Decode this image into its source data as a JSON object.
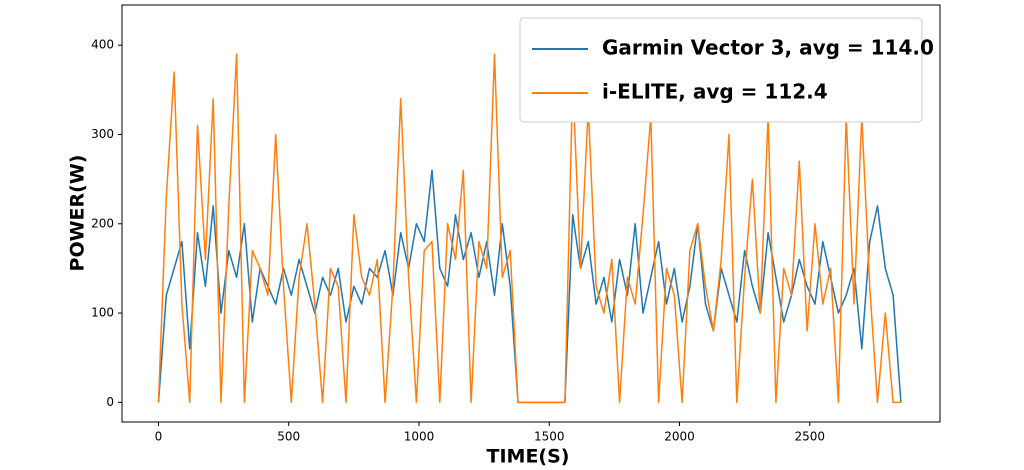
{
  "chart_data": {
    "type": "line",
    "xlabel": "TIME(S)",
    "ylabel": "POWER(W)",
    "x": [
      0,
      30,
      60,
      90,
      120,
      150,
      180,
      210,
      240,
      270,
      300,
      330,
      360,
      390,
      420,
      450,
      480,
      510,
      540,
      570,
      600,
      630,
      660,
      690,
      720,
      750,
      780,
      810,
      840,
      870,
      900,
      930,
      960,
      990,
      1020,
      1050,
      1080,
      1110,
      1140,
      1170,
      1200,
      1230,
      1260,
      1290,
      1320,
      1350,
      1380,
      1410,
      1440,
      1470,
      1500,
      1530,
      1560,
      1590,
      1620,
      1650,
      1680,
      1710,
      1740,
      1770,
      1800,
      1830,
      1860,
      1890,
      1920,
      1950,
      1980,
      2010,
      2040,
      2070,
      2100,
      2130,
      2160,
      2190,
      2220,
      2250,
      2280,
      2310,
      2340,
      2370,
      2400,
      2430,
      2460,
      2490,
      2520,
      2550,
      2580,
      2610,
      2640,
      2670,
      2700,
      2730,
      2760,
      2790,
      2820,
      2850
    ],
    "series": [
      {
        "name": "Garmin Vector 3, avg = 114.0",
        "color": "#1f77b4",
        "values": [
          0,
          120,
          150,
          180,
          60,
          190,
          130,
          220,
          100,
          170,
          140,
          200,
          90,
          150,
          130,
          110,
          150,
          120,
          160,
          130,
          100,
          140,
          120,
          150,
          90,
          130,
          110,
          150,
          140,
          170,
          120,
          190,
          150,
          200,
          180,
          260,
          150,
          130,
          210,
          160,
          190,
          140,
          180,
          120,
          200,
          130,
          0,
          0,
          0,
          0,
          0,
          0,
          0,
          210,
          150,
          180,
          110,
          140,
          90,
          160,
          120,
          200,
          100,
          140,
          180,
          110,
          150,
          90,
          130,
          200,
          110,
          80,
          150,
          120,
          90,
          170,
          130,
          100,
          190,
          140,
          90,
          120,
          160,
          130,
          110,
          180,
          140,
          100,
          120,
          150,
          60,
          180,
          220,
          150,
          120,
          0
        ]
      },
      {
        "name": "i-ELITE, avg = 112.4",
        "color": "#ff7f0e",
        "values": [
          0,
          230,
          370,
          110,
          0,
          310,
          160,
          340,
          0,
          220,
          390,
          0,
          170,
          150,
          120,
          300,
          130,
          0,
          140,
          200,
          110,
          0,
          150,
          130,
          0,
          210,
          140,
          120,
          160,
          0,
          130,
          340,
          140,
          0,
          170,
          180,
          0,
          200,
          160,
          260,
          0,
          180,
          150,
          390,
          140,
          170,
          0,
          0,
          0,
          0,
          0,
          0,
          0,
          360,
          150,
          330,
          130,
          100,
          160,
          0,
          140,
          110,
          210,
          320,
          0,
          150,
          120,
          0,
          170,
          200,
          130,
          80,
          160,
          300,
          0,
          140,
          250,
          100,
          320,
          0,
          150,
          120,
          270,
          80,
          200,
          110,
          150,
          0,
          320,
          110,
          320,
          130,
          0,
          100,
          0,
          0
        ]
      }
    ],
    "xlim": [
      -140,
      3000
    ],
    "xticks": [
      0,
      500,
      1000,
      1500,
      2000,
      2500
    ],
    "ylim": [
      -22,
      445
    ],
    "yticks": [
      0,
      100,
      200,
      300,
      400
    ],
    "grid": false,
    "legend": "upper right"
  }
}
